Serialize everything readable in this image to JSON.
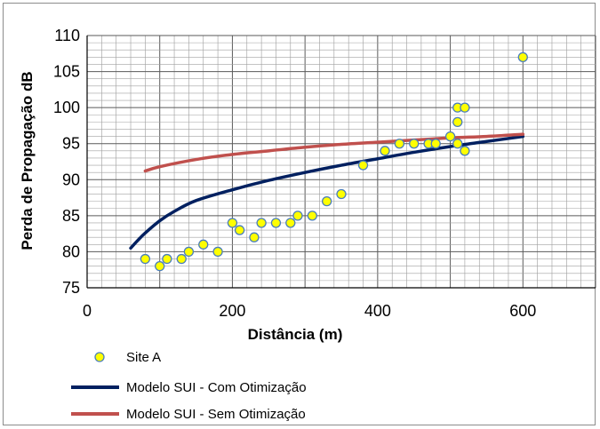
{
  "chart_data": {
    "type": "scatter",
    "xlabel": "Distância (m)",
    "ylabel": "Perda de Propagação dB",
    "xlim": [
      0,
      700
    ],
    "ylim": [
      75,
      110
    ],
    "x_ticks": [
      0,
      200,
      400,
      600
    ],
    "y_ticks": [
      75,
      80,
      85,
      90,
      95,
      100,
      105,
      110
    ],
    "grid": true,
    "legend_position": "bottom",
    "series": [
      {
        "name": "Site A",
        "kind": "scatter",
        "color": "#ffff00",
        "edge_color": "#4a7ebb",
        "x": [
          80,
          100,
          110,
          130,
          140,
          160,
          180,
          200,
          210,
          230,
          240,
          260,
          280,
          290,
          310,
          330,
          350,
          380,
          410,
          430,
          450,
          470,
          480,
          500,
          510,
          510,
          510,
          520,
          520,
          600
        ],
        "y": [
          79,
          78,
          79,
          79,
          80,
          81,
          80,
          84,
          83,
          82,
          84,
          84,
          84,
          85,
          85,
          87,
          88,
          92,
          94,
          95,
          95,
          95,
          95,
          96,
          95,
          98,
          100,
          94,
          100,
          107
        ]
      },
      {
        "name": "Modelo SUI - Com Otimização",
        "kind": "line",
        "color": "#002060",
        "x": [
          60,
          70,
          80,
          100,
          120,
          150,
          200,
          250,
          300,
          350,
          400,
          450,
          500,
          550,
          600
        ],
        "y": [
          80.5,
          81.6,
          82.6,
          84.3,
          85.6,
          87.1,
          88.6,
          89.9,
          91.0,
          92.0,
          92.9,
          93.8,
          94.6,
          95.3,
          96.0
        ]
      },
      {
        "name": "Modelo SUI - Sem Otimização",
        "kind": "line",
        "color": "#c0504d",
        "x": [
          80,
          100,
          150,
          200,
          250,
          300,
          350,
          400,
          450,
          500,
          550,
          600
        ],
        "y": [
          91.2,
          91.8,
          92.8,
          93.5,
          94.0,
          94.5,
          94.9,
          95.2,
          95.5,
          95.8,
          96.0,
          96.3
        ]
      }
    ]
  }
}
